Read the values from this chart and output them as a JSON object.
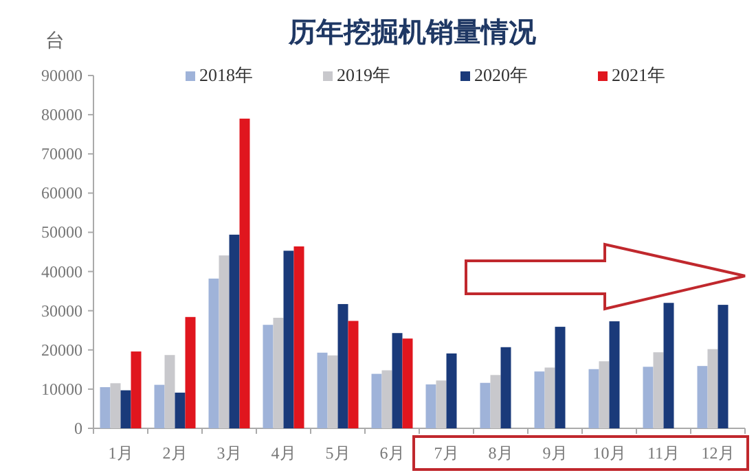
{
  "chart_data": {
    "type": "bar",
    "title": "历年挖掘机销量情况",
    "ylabel": "台",
    "categories": [
      "1月",
      "2月",
      "3月",
      "4月",
      "5月",
      "6月",
      "7月",
      "8月",
      "9月",
      "10月",
      "11月",
      "12月"
    ],
    "series": [
      {
        "name": "2018年",
        "color": "#9fb3d9",
        "values": [
          10500,
          11100,
          38200,
          26400,
          19300,
          13900,
          11200,
          11600,
          14500,
          15100,
          15700,
          15900
        ]
      },
      {
        "name": "2019年",
        "color": "#c8c8cc",
        "values": [
          11500,
          18700,
          44100,
          28200,
          18600,
          14800,
          12200,
          13600,
          15500,
          17100,
          19400,
          20200
        ]
      },
      {
        "name": "2020年",
        "color": "#1a3a7a",
        "values": [
          9700,
          9100,
          49400,
          45300,
          31700,
          24300,
          19100,
          20700,
          25900,
          27300,
          32000,
          31500
        ]
      },
      {
        "name": "2021年",
        "color": "#e0161e",
        "values": [
          19600,
          28400,
          79000,
          46400,
          27400,
          22900,
          null,
          null,
          null,
          null,
          null,
          null
        ]
      }
    ],
    "ylim": [
      0,
      90000
    ],
    "yticks": [
      0,
      10000,
      20000,
      30000,
      40000,
      50000,
      60000,
      70000,
      80000,
      90000
    ],
    "grid": false,
    "legend": "top"
  }
}
